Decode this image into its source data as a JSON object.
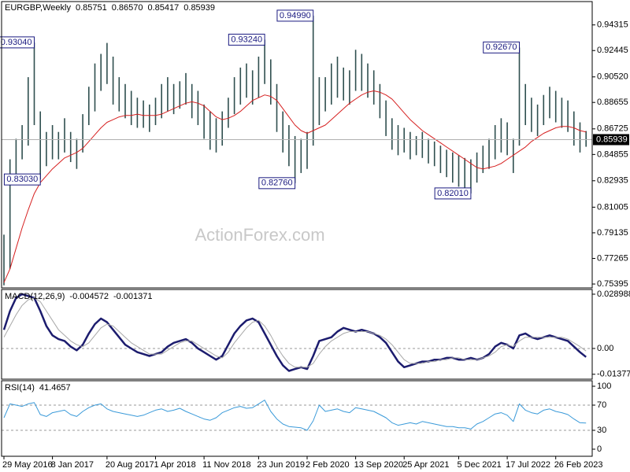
{
  "chart_data": [
    {
      "type": "ohlc",
      "title": "EURGBP,Weekly",
      "header_values": [
        0.85751,
        {
          "value": 0.8657,
          "label": "0.86570"
        },
        0.85417,
        0.85939
      ],
      "watermark": "ActionForex.com",
      "categories": [
        "29 May 2016",
        null,
        null,
        null,
        null,
        null,
        null,
        null,
        "8 Jan 2017",
        null,
        null,
        null,
        null,
        null,
        null,
        null,
        null,
        "20 Aug 2017",
        null,
        null,
        null,
        null,
        null,
        null,
        null,
        "1 Apr 2018",
        null,
        null,
        null,
        null,
        null,
        null,
        null,
        "11 Nov 2018",
        null,
        null,
        null,
        null,
        null,
        null,
        null,
        null,
        "23 Jun 2019",
        null,
        null,
        null,
        null,
        null,
        null,
        null,
        "2 Feb 2020",
        null,
        null,
        null,
        null,
        null,
        null,
        null,
        "13 Sep 2020",
        null,
        null,
        null,
        null,
        null,
        null,
        null,
        "25 Apr 2021",
        null,
        null,
        null,
        null,
        null,
        null,
        null,
        null,
        "5 Dec 2021",
        null,
        null,
        null,
        null,
        null,
        null,
        null,
        "17 Jul 2022",
        null,
        null,
        null,
        null,
        null,
        null,
        null,
        "26 Feb 2023",
        null,
        null,
        null,
        null,
        null
      ],
      "high": [
        0.79,
        0.845,
        0.86,
        0.87,
        0.905,
        0.9304,
        0.88,
        0.865,
        0.87,
        0.865,
        0.875,
        0.865,
        0.86,
        0.878,
        0.898,
        0.915,
        0.922,
        0.93,
        0.92,
        0.905,
        0.9,
        0.895,
        0.89,
        0.888,
        0.885,
        0.89,
        0.9,
        0.905,
        0.9,
        0.902,
        0.908,
        0.9,
        0.895,
        0.885,
        0.88,
        0.875,
        0.88,
        0.89,
        0.905,
        0.912,
        0.915,
        0.91,
        0.92,
        0.9324,
        0.918,
        0.9,
        0.88,
        0.87,
        0.862,
        0.86,
        0.865,
        0.9499,
        0.905,
        0.905,
        0.915,
        0.92,
        0.912,
        0.91,
        0.925,
        0.922,
        0.915,
        0.91,
        0.9,
        0.888,
        0.875,
        0.87,
        0.868,
        0.865,
        0.862,
        0.865,
        0.86,
        0.858,
        0.855,
        0.852,
        0.85,
        0.848,
        0.846,
        0.845,
        0.85,
        0.855,
        0.86,
        0.87,
        0.875,
        0.872,
        0.86,
        0.9267,
        0.9,
        0.89,
        0.885,
        0.892,
        0.898,
        0.895,
        0.89,
        0.888,
        0.88,
        0.872,
        0.8657
      ],
      "low": [
        0.753,
        0.765,
        0.83,
        0.845,
        0.855,
        0.87,
        0.8303,
        0.84,
        0.845,
        0.845,
        0.85,
        0.843,
        0.838,
        0.85,
        0.87,
        0.88,
        0.895,
        0.9,
        0.885,
        0.88,
        0.875,
        0.87,
        0.868,
        0.868,
        0.865,
        0.87,
        0.875,
        0.88,
        0.878,
        0.882,
        0.885,
        0.875,
        0.87,
        0.86,
        0.852,
        0.85,
        0.855,
        0.868,
        0.878,
        0.885,
        0.89,
        0.885,
        0.89,
        0.9,
        0.885,
        0.865,
        0.85,
        0.84,
        0.8276,
        0.835,
        0.838,
        0.855,
        0.87,
        0.88,
        0.885,
        0.89,
        0.888,
        0.885,
        0.895,
        0.895,
        0.89,
        0.885,
        0.875,
        0.862,
        0.852,
        0.848,
        0.85,
        0.845,
        0.848,
        0.846,
        0.842,
        0.84,
        0.835,
        0.832,
        0.828,
        0.825,
        0.823,
        0.8201,
        0.828,
        0.835,
        0.838,
        0.845,
        0.85,
        0.848,
        0.835,
        0.855,
        0.87,
        0.865,
        0.862,
        0.87,
        0.875,
        0.872,
        0.868,
        0.865,
        0.855,
        0.85,
        0.85417
      ],
      "bar_color": "#2f4f4f",
      "series": [
        {
          "color": "#d62020",
          "values": [
            0.755,
            0.765,
            0.78,
            0.795,
            0.808,
            0.82,
            0.828,
            0.833,
            0.838,
            0.842,
            0.846,
            0.848,
            0.85,
            0.853,
            0.858,
            0.863,
            0.868,
            0.872,
            0.874,
            0.876,
            0.877,
            0.877,
            0.878,
            0.877,
            0.877,
            0.877,
            0.878,
            0.88,
            0.882,
            0.884,
            0.886,
            0.887,
            0.886,
            0.884,
            0.88,
            0.876,
            0.874,
            0.875,
            0.877,
            0.88,
            0.884,
            0.888,
            0.89,
            0.892,
            0.891,
            0.888,
            0.882,
            0.876,
            0.87,
            0.866,
            0.864,
            0.866,
            0.868,
            0.87,
            0.874,
            0.878,
            0.882,
            0.886,
            0.889,
            0.892,
            0.894,
            0.895,
            0.894,
            0.892,
            0.889,
            0.884,
            0.879,
            0.874,
            0.87,
            0.866,
            0.863,
            0.86,
            0.857,
            0.854,
            0.851,
            0.848,
            0.845,
            0.842,
            0.839,
            0.838,
            0.839,
            0.84,
            0.842,
            0.845,
            0.848,
            0.851,
            0.854,
            0.858,
            0.861,
            0.864,
            0.866,
            0.868,
            0.869,
            0.869,
            0.868,
            0.866,
            0.865
          ]
        }
      ],
      "annotations": [
        {
          "value": 0.9304,
          "label": "0.93040"
        },
        {
          "value": 0.8303,
          "label": "0.83030"
        },
        {
          "value": 0.9324,
          "label": "0.93240"
        },
        {
          "value": 0.9499,
          "label": "0.94990"
        },
        {
          "value": 0.8276,
          "label": "0.82760"
        },
        {
          "value": 0.9267,
          "label": "0.92670"
        },
        {
          "value": 0.8201,
          "label": "0.82010"
        }
      ],
      "ylim": [
        0.7511,
        0.9602
      ],
      "yticks": [
        0.94315,
        0.92445,
        {
          "value": 0.9052,
          "label": "0.90520"
        },
        0.88655,
        0.86725,
        0.84855,
        0.82935,
        0.81005,
        0.79135,
        0.77265,
        0.75395
      ]
    },
    {
      "type": "line",
      "title": "MACD(12,26,9)",
      "series": [
        {
          "color": "#1c1c6e",
          "width": 2.5,
          "values": [
            0.01,
            0.02,
            0.027,
            0.029,
            0.028,
            0.027,
            0.02,
            0.012,
            0.007,
            0.005,
            0.004,
            0.001,
            -0.001,
            0.002,
            0.008,
            0.013,
            0.016,
            0.014,
            0.01,
            0.006,
            0.002,
            0.0,
            -0.002,
            -0.003,
            -0.004,
            -0.003,
            -0.002,
            0.001,
            0.003,
            0.004,
            0.005,
            0.003,
            0.0,
            -0.002,
            -0.004,
            -0.006,
            -0.004,
            0.002,
            0.008,
            0.012,
            0.015,
            0.016,
            0.014,
            0.008,
            0.002,
            -0.004,
            -0.009,
            -0.012,
            -0.011,
            -0.01,
            -0.011,
            -0.004,
            0.004,
            0.005,
            0.006,
            0.009,
            0.011,
            0.01,
            0.009,
            0.01,
            0.009,
            0.008,
            0.006,
            0.003,
            -0.002,
            -0.007,
            -0.01,
            -0.009,
            -0.008,
            -0.007,
            -0.007,
            -0.006,
            -0.006,
            -0.005,
            -0.005,
            -0.006,
            -0.006,
            -0.005,
            -0.006,
            -0.005,
            -0.003,
            0.001,
            0.003,
            0.002,
            0.0,
            0.007,
            0.008,
            0.006,
            0.005,
            0.006,
            0.007,
            0.006,
            0.005,
            0.004,
            0.001,
            -0.002,
            -0.004572
          ]
        },
        {
          "color": "#a8a8a8",
          "width": 1,
          "values": [
            0.006,
            0.012,
            0.018,
            0.023,
            0.026,
            0.027,
            0.025,
            0.02,
            0.015,
            0.01,
            0.007,
            0.004,
            0.002,
            0.001,
            0.003,
            0.007,
            0.011,
            0.013,
            0.012,
            0.009,
            0.006,
            0.003,
            0.001,
            -0.001,
            -0.003,
            -0.003,
            -0.003,
            -0.001,
            0.001,
            0.003,
            0.004,
            0.004,
            0.002,
            0.0,
            -0.002,
            -0.004,
            -0.005,
            -0.002,
            0.003,
            0.007,
            0.011,
            0.014,
            0.015,
            0.012,
            0.007,
            0.001,
            -0.004,
            -0.008,
            -0.01,
            -0.01,
            -0.01,
            -0.008,
            -0.003,
            0.001,
            0.004,
            0.006,
            0.008,
            0.009,
            0.009,
            0.009,
            0.009,
            0.008,
            0.007,
            0.005,
            0.002,
            -0.002,
            -0.006,
            -0.008,
            -0.008,
            -0.008,
            -0.007,
            -0.007,
            -0.006,
            -0.006,
            -0.005,
            -0.005,
            -0.006,
            -0.006,
            -0.006,
            -0.005,
            -0.004,
            -0.002,
            0.001,
            0.002,
            0.001,
            0.004,
            0.006,
            0.006,
            0.006,
            0.006,
            0.006,
            0.006,
            0.006,
            0.005,
            0.003,
            0.001,
            -0.001371
          ]
        }
      ],
      "level_lines": [
        0
      ],
      "ylim": [
        -0.0164,
        0.0315
      ],
      "yticks": [
        0.028988,
        {
          "value": 0,
          "label": "0.00"
        },
        -0.013779
      ]
    },
    {
      "type": "line",
      "title": "RSI(14)",
      "series": [
        {
          "color": "#3a9ad9",
          "width": 1,
          "values": [
            50,
            72,
            70,
            68,
            72,
            74,
            55,
            52,
            58,
            60,
            62,
            55,
            52,
            60,
            66,
            70,
            72,
            64,
            60,
            58,
            56,
            54,
            52,
            54,
            58,
            62,
            64,
            60,
            62,
            65,
            60,
            56,
            52,
            48,
            46,
            50,
            58,
            62,
            66,
            68,
            65,
            66,
            72,
            78,
            60,
            48,
            40,
            36,
            35,
            34,
            30,
            45,
            70,
            60,
            62,
            64,
            60,
            58,
            66,
            64,
            62,
            60,
            55,
            50,
            42,
            38,
            40,
            42,
            40,
            44,
            42,
            40,
            38,
            36,
            36,
            34,
            34,
            32,
            40,
            44,
            50,
            56,
            58,
            54,
            44,
            72,
            62,
            58,
            56,
            62,
            64,
            60,
            58,
            55,
            48,
            42,
            41.4657
          ]
        }
      ],
      "level_lines": [
        70,
        30
      ],
      "ylim": [
        -11.25,
        108.75
      ],
      "yticks": [
        100,
        70,
        30,
        0
      ]
    }
  ]
}
